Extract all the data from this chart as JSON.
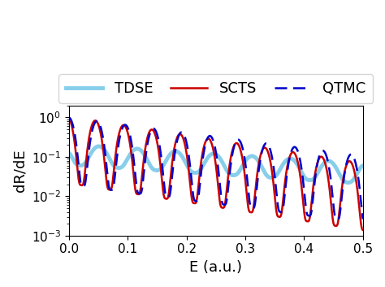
{
  "title": "",
  "xlabel": "E (a.u.)",
  "ylabel": "dR/dE",
  "xlim": [
    0,
    0.5
  ],
  "ylim_log": [
    0.001,
    2.0
  ],
  "legend_labels": [
    "QTMC",
    "SCTS",
    "TDSE"
  ],
  "qtmc_color": "#0000cc",
  "scts_color": "#cc0000",
  "tdse_color": "#87ceeb",
  "figsize": [
    4.74,
    3.53
  ],
  "dpi": 100
}
